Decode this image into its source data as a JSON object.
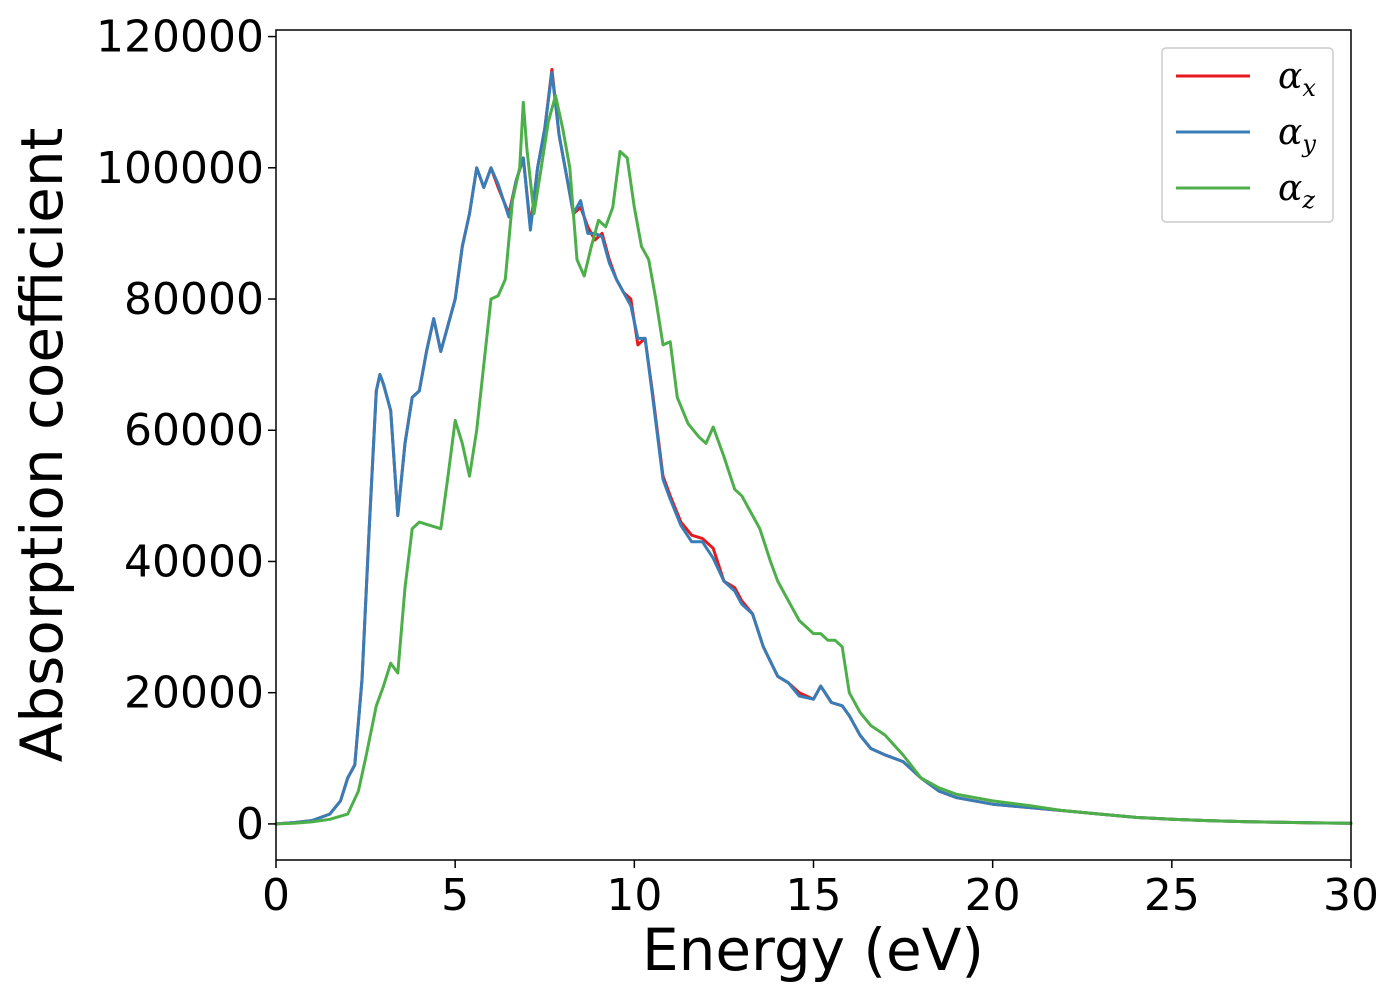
{
  "chart_data": {
    "type": "line",
    "title": "",
    "xlabel": "Energy (eV)",
    "ylabel": "Absorption coefficient",
    "xlim": [
      0,
      30
    ],
    "ylim": [
      -5500,
      121000
    ],
    "xticks": [
      0,
      5,
      10,
      15,
      20,
      25,
      30
    ],
    "yticks": [
      0,
      20000,
      40000,
      60000,
      80000,
      100000,
      120000
    ],
    "grid": false,
    "legend_position": "top-right",
    "series": [
      {
        "name": "α",
        "subscript": "x",
        "color": "#e41a1c",
        "x": [
          0,
          0.5,
          1.0,
          1.5,
          1.8,
          2.0,
          2.2,
          2.4,
          2.6,
          2.8,
          2.9,
          3.0,
          3.2,
          3.4,
          3.6,
          3.8,
          4.0,
          4.2,
          4.4,
          4.6,
          4.8,
          5.0,
          5.2,
          5.4,
          5.6,
          5.8,
          6.0,
          6.2,
          6.5,
          6.7,
          6.9,
          7.1,
          7.3,
          7.5,
          7.7,
          7.9,
          8.1,
          8.3,
          8.5,
          8.7,
          8.9,
          9.1,
          9.3,
          9.5,
          9.7,
          9.9,
          10.1,
          10.3,
          10.5,
          10.8,
          11.0,
          11.3,
          11.6,
          11.9,
          12.2,
          12.5,
          12.8,
          13.0,
          13.3,
          13.6,
          14.0,
          14.3,
          14.6,
          15.0,
          15.2,
          15.5,
          15.8,
          16.0,
          16.3,
          16.6,
          17.0,
          17.5,
          18.0,
          18.5,
          19.0,
          20.0,
          21.0,
          22.0,
          23.0,
          24.0,
          25.0,
          26.0,
          27.0,
          28.0,
          29.0,
          30.0
        ],
        "y": [
          0,
          200,
          500,
          1500,
          3500,
          7000,
          9000,
          22000,
          45000,
          66000,
          68500,
          67000,
          63000,
          47000,
          58000,
          65000,
          66000,
          72000,
          77000,
          72000,
          76000,
          80000,
          88000,
          93000,
          100000,
          97000,
          100000,
          97000,
          93000,
          98000,
          101500,
          91000,
          100000,
          106000,
          115000,
          105000,
          99000,
          93000,
          94000,
          91000,
          89000,
          90000,
          86000,
          83000,
          81000,
          80000,
          73000,
          74000,
          66000,
          53000,
          50000,
          46000,
          44000,
          43500,
          42000,
          37000,
          36000,
          34000,
          32000,
          27000,
          22500,
          21500,
          20000,
          19000,
          21000,
          18500,
          18000,
          16500,
          13500,
          11500,
          10500,
          9500,
          7000,
          5000,
          4000,
          3000,
          2500,
          2000,
          1500,
          1000,
          700,
          500,
          350,
          250,
          150,
          100
        ]
      },
      {
        "name": "α",
        "subscript": "y",
        "color": "#377eb8",
        "x": [
          0,
          0.5,
          1.0,
          1.5,
          1.8,
          2.0,
          2.2,
          2.4,
          2.6,
          2.8,
          2.9,
          3.0,
          3.2,
          3.4,
          3.6,
          3.8,
          4.0,
          4.2,
          4.4,
          4.6,
          4.8,
          5.0,
          5.2,
          5.4,
          5.6,
          5.8,
          6.0,
          6.2,
          6.5,
          6.7,
          6.9,
          7.1,
          7.3,
          7.5,
          7.7,
          7.9,
          8.1,
          8.3,
          8.5,
          8.7,
          8.9,
          9.1,
          9.3,
          9.5,
          9.7,
          9.9,
          10.1,
          10.3,
          10.5,
          10.8,
          11.0,
          11.3,
          11.6,
          11.9,
          12.2,
          12.5,
          12.8,
          13.0,
          13.3,
          13.6,
          14.0,
          14.3,
          14.6,
          15.0,
          15.2,
          15.5,
          15.8,
          16.0,
          16.3,
          16.6,
          17.0,
          17.5,
          18.0,
          18.5,
          19.0,
          20.0,
          21.0,
          22.0,
          23.0,
          24.0,
          25.0,
          26.0,
          27.0,
          28.0,
          29.0,
          30.0
        ],
        "y": [
          0,
          200,
          500,
          1500,
          3500,
          7000,
          9000,
          22000,
          45000,
          66000,
          68500,
          67000,
          63000,
          47000,
          58000,
          65000,
          66000,
          72000,
          77000,
          72000,
          76000,
          80000,
          88000,
          93000,
          100000,
          97000,
          100000,
          97500,
          92500,
          98000,
          101500,
          90500,
          100000,
          106000,
          114500,
          105000,
          99000,
          93000,
          95000,
          90000,
          90000,
          89500,
          85500,
          83000,
          81000,
          79000,
          74000,
          74000,
          65500,
          52500,
          49500,
          45500,
          43000,
          43000,
          40500,
          37000,
          35500,
          33500,
          32000,
          27000,
          22500,
          21500,
          19500,
          19000,
          21000,
          18500,
          18000,
          16500,
          13500,
          11500,
          10500,
          9500,
          7000,
          5000,
          4000,
          3000,
          2500,
          2000,
          1500,
          1000,
          700,
          500,
          350,
          250,
          150,
          100
        ]
      },
      {
        "name": "α",
        "subscript": "z",
        "color": "#4daf4a",
        "x": [
          0,
          0.5,
          1.0,
          1.5,
          2.0,
          2.3,
          2.5,
          2.8,
          3.0,
          3.2,
          3.4,
          3.6,
          3.8,
          4.0,
          4.3,
          4.6,
          4.8,
          5.0,
          5.2,
          5.4,
          5.6,
          5.8,
          6.0,
          6.2,
          6.4,
          6.6,
          6.8,
          6.9,
          7.0,
          7.2,
          7.4,
          7.6,
          7.8,
          8.0,
          8.2,
          8.4,
          8.6,
          8.8,
          9.0,
          9.2,
          9.4,
          9.6,
          9.8,
          10.0,
          10.2,
          10.4,
          10.6,
          10.8,
          11.0,
          11.2,
          11.5,
          11.8,
          12.0,
          12.2,
          12.5,
          12.8,
          13.0,
          13.2,
          13.5,
          13.8,
          14.0,
          14.3,
          14.6,
          15.0,
          15.2,
          15.4,
          15.6,
          15.8,
          16.0,
          16.3,
          16.6,
          17.0,
          17.5,
          18.0,
          18.5,
          19.0,
          20.0,
          21.0,
          22.0,
          23.0,
          24.0,
          25.0,
          26.0,
          27.0,
          28.0,
          29.0,
          30.0
        ],
        "y": [
          0,
          100,
          300,
          700,
          1500,
          5000,
          10000,
          18000,
          21000,
          24500,
          23000,
          36000,
          45000,
          46000,
          45500,
          45000,
          53000,
          61500,
          58000,
          53000,
          60000,
          70000,
          80000,
          80500,
          83000,
          95000,
          100000,
          110000,
          103000,
          93000,
          100000,
          107000,
          111000,
          106000,
          100000,
          86000,
          83500,
          88000,
          92000,
          91000,
          94000,
          102500,
          101500,
          94000,
          88000,
          86000,
          80000,
          73000,
          73500,
          65000,
          61000,
          59000,
          58000,
          60500,
          56000,
          51000,
          50000,
          48000,
          45000,
          40000,
          37000,
          34000,
          31000,
          29000,
          29000,
          28000,
          28000,
          27000,
          20000,
          17000,
          15000,
          13500,
          10500,
          7000,
          5500,
          4500,
          3500,
          2800,
          2000,
          1500,
          1000,
          700,
          500,
          350,
          250,
          150,
          100
        ]
      }
    ]
  }
}
